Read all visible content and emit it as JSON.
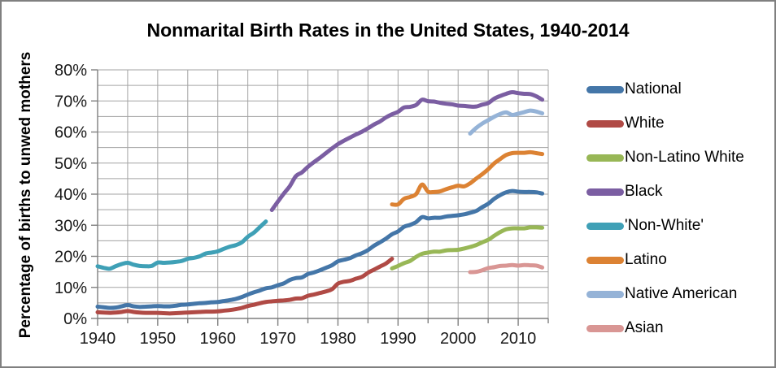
{
  "chart_data": {
    "type": "line",
    "title": "Nonmarital Birth Rates in the United States, 1940-2014",
    "ylabel": "Percentage of births to unwed mothers",
    "xlabel": "",
    "x_range": [
      1940,
      2015
    ],
    "ylim": [
      0,
      80
    ],
    "grid": true,
    "x_grid_step_years": 5,
    "y_grid_step_percent": 5,
    "legend_position": "right",
    "x_tick_labels": [
      "1940",
      "1950",
      "1960",
      "1970",
      "1980",
      "1990",
      "2000",
      "2010"
    ],
    "x_tick_years": [
      1940,
      1950,
      1960,
      1970,
      1980,
      1990,
      2000,
      2010
    ],
    "y_tick_labels": [
      "0%",
      "10%",
      "20%",
      "30%",
      "40%",
      "50%",
      "60%",
      "70%",
      "80%"
    ],
    "y_tick_values": [
      0,
      10,
      20,
      30,
      40,
      50,
      60,
      70,
      80
    ],
    "colors": {
      "grid": "#a3a3a3",
      "axis": "#7f7f7f",
      "title_text": "#000000",
      "tick_text": "#1a1a1a"
    },
    "series": [
      {
        "name": "National",
        "color": "#4476A8",
        "points": [
          [
            1940,
            3.8
          ],
          [
            1941,
            3.6
          ],
          [
            1942,
            3.4
          ],
          [
            1943,
            3.5
          ],
          [
            1944,
            3.9
          ],
          [
            1945,
            4.3
          ],
          [
            1946,
            3.9
          ],
          [
            1947,
            3.7
          ],
          [
            1948,
            3.8
          ],
          [
            1949,
            3.9
          ],
          [
            1950,
            4.0
          ],
          [
            1951,
            3.9
          ],
          [
            1952,
            3.9
          ],
          [
            1953,
            4.1
          ],
          [
            1954,
            4.4
          ],
          [
            1955,
            4.5
          ],
          [
            1956,
            4.7
          ],
          [
            1957,
            4.9
          ],
          [
            1958,
            5.0
          ],
          [
            1959,
            5.2
          ],
          [
            1960,
            5.3
          ],
          [
            1961,
            5.6
          ],
          [
            1962,
            5.9
          ],
          [
            1963,
            6.3
          ],
          [
            1964,
            6.9
          ],
          [
            1965,
            7.7
          ],
          [
            1966,
            8.4
          ],
          [
            1967,
            9.0
          ],
          [
            1968,
            9.7
          ],
          [
            1969,
            10.0
          ],
          [
            1970,
            10.7
          ],
          [
            1971,
            11.3
          ],
          [
            1972,
            12.4
          ],
          [
            1973,
            13.0
          ],
          [
            1974,
            13.2
          ],
          [
            1975,
            14.3
          ],
          [
            1976,
            14.8
          ],
          [
            1977,
            15.5
          ],
          [
            1978,
            16.3
          ],
          [
            1979,
            17.1
          ],
          [
            1980,
            18.4
          ],
          [
            1981,
            18.9
          ],
          [
            1982,
            19.4
          ],
          [
            1983,
            20.3
          ],
          [
            1984,
            21.0
          ],
          [
            1985,
            22.0
          ],
          [
            1986,
            23.4
          ],
          [
            1987,
            24.5
          ],
          [
            1988,
            25.7
          ],
          [
            1989,
            27.1
          ],
          [
            1990,
            28.0
          ],
          [
            1991,
            29.5
          ],
          [
            1992,
            30.1
          ],
          [
            1993,
            31.0
          ],
          [
            1994,
            32.6
          ],
          [
            1995,
            32.2
          ],
          [
            1996,
            32.4
          ],
          [
            1997,
            32.4
          ],
          [
            1998,
            32.8
          ],
          [
            1999,
            33.0
          ],
          [
            2000,
            33.2
          ],
          [
            2001,
            33.5
          ],
          [
            2002,
            34.0
          ],
          [
            2003,
            34.6
          ],
          [
            2004,
            35.8
          ],
          [
            2005,
            36.9
          ],
          [
            2006,
            38.5
          ],
          [
            2007,
            39.7
          ],
          [
            2008,
            40.6
          ],
          [
            2009,
            41.0
          ],
          [
            2010,
            40.8
          ],
          [
            2011,
            40.7
          ],
          [
            2012,
            40.7
          ],
          [
            2013,
            40.6
          ],
          [
            2014,
            40.2
          ]
        ]
      },
      {
        "name": "White",
        "color": "#B04A45",
        "points": [
          [
            1940,
            2.0
          ],
          [
            1941,
            1.9
          ],
          [
            1942,
            1.8
          ],
          [
            1943,
            1.9
          ],
          [
            1944,
            2.1
          ],
          [
            1945,
            2.4
          ],
          [
            1946,
            2.1
          ],
          [
            1947,
            1.9
          ],
          [
            1948,
            1.8
          ],
          [
            1949,
            1.8
          ],
          [
            1950,
            1.8
          ],
          [
            1951,
            1.7
          ],
          [
            1952,
            1.6
          ],
          [
            1953,
            1.7
          ],
          [
            1954,
            1.8
          ],
          [
            1955,
            1.9
          ],
          [
            1956,
            2.0
          ],
          [
            1957,
            2.1
          ],
          [
            1958,
            2.2
          ],
          [
            1959,
            2.2
          ],
          [
            1960,
            2.3
          ],
          [
            1961,
            2.5
          ],
          [
            1962,
            2.7
          ],
          [
            1963,
            3.0
          ],
          [
            1964,
            3.4
          ],
          [
            1965,
            4.0
          ],
          [
            1966,
            4.4
          ],
          [
            1967,
            4.9
          ],
          [
            1968,
            5.3
          ],
          [
            1969,
            5.5
          ],
          [
            1970,
            5.7
          ],
          [
            1971,
            5.8
          ],
          [
            1972,
            6.0
          ],
          [
            1973,
            6.4
          ],
          [
            1974,
            6.5
          ],
          [
            1975,
            7.3
          ],
          [
            1976,
            7.7
          ],
          [
            1977,
            8.2
          ],
          [
            1978,
            8.7
          ],
          [
            1979,
            9.4
          ],
          [
            1980,
            11.2
          ],
          [
            1981,
            11.8
          ],
          [
            1982,
            12.1
          ],
          [
            1983,
            12.8
          ],
          [
            1984,
            13.4
          ],
          [
            1985,
            14.7
          ],
          [
            1986,
            15.7
          ],
          [
            1987,
            16.7
          ],
          [
            1988,
            17.7
          ],
          [
            1989,
            19.2
          ]
        ]
      },
      {
        "name": "Non-Latino White",
        "color": "#98B756",
        "points": [
          [
            1989,
            16.1
          ],
          [
            1990,
            16.9
          ],
          [
            1991,
            17.8
          ],
          [
            1992,
            18.5
          ],
          [
            1993,
            19.8
          ],
          [
            1994,
            20.8
          ],
          [
            1995,
            21.2
          ],
          [
            1996,
            21.5
          ],
          [
            1997,
            21.5
          ],
          [
            1998,
            21.9
          ],
          [
            1999,
            22.0
          ],
          [
            2000,
            22.1
          ],
          [
            2001,
            22.5
          ],
          [
            2002,
            23.0
          ],
          [
            2003,
            23.6
          ],
          [
            2004,
            24.5
          ],
          [
            2005,
            25.3
          ],
          [
            2006,
            26.6
          ],
          [
            2007,
            27.8
          ],
          [
            2008,
            28.7
          ],
          [
            2009,
            29.0
          ],
          [
            2010,
            29.0
          ],
          [
            2011,
            29.0
          ],
          [
            2012,
            29.3
          ],
          [
            2013,
            29.3
          ],
          [
            2014,
            29.2
          ]
        ]
      },
      {
        "name": "Black",
        "color": "#7B5EA2",
        "points": [
          [
            1969,
            34.9
          ],
          [
            1970,
            37.6
          ],
          [
            1971,
            40.2
          ],
          [
            1972,
            42.6
          ],
          [
            1973,
            45.8
          ],
          [
            1974,
            47.0
          ],
          [
            1975,
            48.8
          ],
          [
            1976,
            50.3
          ],
          [
            1977,
            51.7
          ],
          [
            1978,
            53.2
          ],
          [
            1979,
            54.7
          ],
          [
            1980,
            56.1
          ],
          [
            1981,
            57.2
          ],
          [
            1982,
            58.2
          ],
          [
            1983,
            59.2
          ],
          [
            1984,
            60.1
          ],
          [
            1985,
            61.2
          ],
          [
            1986,
            62.4
          ],
          [
            1987,
            63.4
          ],
          [
            1988,
            64.7
          ],
          [
            1989,
            65.7
          ],
          [
            1990,
            66.5
          ],
          [
            1991,
            67.9
          ],
          [
            1992,
            68.1
          ],
          [
            1993,
            68.7
          ],
          [
            1994,
            70.4
          ],
          [
            1995,
            69.9
          ],
          [
            1996,
            69.8
          ],
          [
            1997,
            69.4
          ],
          [
            1998,
            69.1
          ],
          [
            1999,
            68.9
          ],
          [
            2000,
            68.5
          ],
          [
            2001,
            68.4
          ],
          [
            2002,
            68.2
          ],
          [
            2003,
            68.2
          ],
          [
            2004,
            68.8
          ],
          [
            2005,
            69.3
          ],
          [
            2006,
            70.7
          ],
          [
            2007,
            71.6
          ],
          [
            2008,
            72.3
          ],
          [
            2009,
            72.8
          ],
          [
            2010,
            72.5
          ],
          [
            2011,
            72.3
          ],
          [
            2012,
            72.2
          ],
          [
            2013,
            71.5
          ],
          [
            2014,
            70.4
          ]
        ]
      },
      {
        "name": "'Non-White'",
        "color": "#3FA0B6",
        "points": [
          [
            1940,
            16.8
          ],
          [
            1941,
            16.3
          ],
          [
            1942,
            16.0
          ],
          [
            1943,
            16.8
          ],
          [
            1944,
            17.5
          ],
          [
            1945,
            17.9
          ],
          [
            1946,
            17.3
          ],
          [
            1947,
            16.9
          ],
          [
            1948,
            16.8
          ],
          [
            1949,
            16.9
          ],
          [
            1950,
            18.0
          ],
          [
            1951,
            17.9
          ],
          [
            1952,
            18.0
          ],
          [
            1953,
            18.2
          ],
          [
            1954,
            18.5
          ],
          [
            1955,
            19.2
          ],
          [
            1956,
            19.5
          ],
          [
            1957,
            20.0
          ],
          [
            1958,
            20.9
          ],
          [
            1959,
            21.2
          ],
          [
            1960,
            21.6
          ],
          [
            1961,
            22.4
          ],
          [
            1962,
            23.1
          ],
          [
            1963,
            23.6
          ],
          [
            1964,
            24.5
          ],
          [
            1965,
            26.3
          ],
          [
            1966,
            27.6
          ],
          [
            1967,
            29.4
          ],
          [
            1968,
            31.2
          ]
        ]
      },
      {
        "name": "Latino",
        "color": "#DC8233",
        "points": [
          [
            1989,
            36.7
          ],
          [
            1990,
            36.7
          ],
          [
            1991,
            38.5
          ],
          [
            1992,
            39.1
          ],
          [
            1993,
            40.0
          ],
          [
            1994,
            43.1
          ],
          [
            1995,
            40.8
          ],
          [
            1996,
            40.7
          ],
          [
            1997,
            40.9
          ],
          [
            1998,
            41.6
          ],
          [
            1999,
            42.2
          ],
          [
            2000,
            42.7
          ],
          [
            2001,
            42.5
          ],
          [
            2002,
            43.5
          ],
          [
            2003,
            45.0
          ],
          [
            2004,
            46.4
          ],
          [
            2005,
            48.0
          ],
          [
            2006,
            49.9
          ],
          [
            2007,
            51.3
          ],
          [
            2008,
            52.6
          ],
          [
            2009,
            53.2
          ],
          [
            2010,
            53.3
          ],
          [
            2011,
            53.3
          ],
          [
            2012,
            53.5
          ],
          [
            2013,
            53.2
          ],
          [
            2014,
            52.9
          ]
        ]
      },
      {
        "name": "Native American",
        "color": "#95B3D7",
        "points": [
          [
            2002,
            59.5
          ],
          [
            2003,
            61.3
          ],
          [
            2004,
            62.7
          ],
          [
            2005,
            63.8
          ],
          [
            2006,
            64.9
          ],
          [
            2007,
            65.8
          ],
          [
            2008,
            66.3
          ],
          [
            2009,
            65.5
          ],
          [
            2010,
            65.9
          ],
          [
            2011,
            66.4
          ],
          [
            2012,
            66.9
          ],
          [
            2013,
            66.6
          ],
          [
            2014,
            66.0
          ]
        ]
      },
      {
        "name": "Asian",
        "color": "#D99694",
        "points": [
          [
            2002,
            14.9
          ],
          [
            2003,
            15.0
          ],
          [
            2004,
            15.5
          ],
          [
            2005,
            16.2
          ],
          [
            2006,
            16.5
          ],
          [
            2007,
            16.9
          ],
          [
            2008,
            17.0
          ],
          [
            2009,
            17.2
          ],
          [
            2010,
            17.0
          ],
          [
            2011,
            17.2
          ],
          [
            2012,
            17.1
          ],
          [
            2013,
            17.0
          ],
          [
            2014,
            16.4
          ]
        ]
      }
    ]
  }
}
